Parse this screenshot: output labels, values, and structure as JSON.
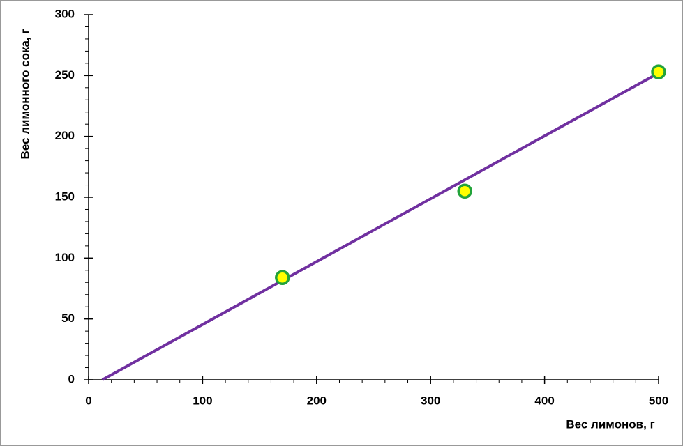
{
  "chart_data": {
    "type": "scatter",
    "x_label": "Вес лимонов, г",
    "y_label": "Вес лимонного сока, г",
    "series": [
      {
        "type": "scatter",
        "x": [
          170,
          330,
          500
        ],
        "values": [
          84,
          155,
          253
        ],
        "color": "#ffff00",
        "edge_color": "#22a33a"
      },
      {
        "type": "line",
        "x": [
          12,
          500
        ],
        "values": [
          0,
          252
        ],
        "color": "#7030a0"
      }
    ],
    "xlim": [
      0,
      500
    ],
    "xticks": [
      0,
      100,
      200,
      300,
      400,
      500
    ],
    "ylim": [
      0,
      300
    ],
    "yticks": [
      0,
      50,
      100,
      150,
      200,
      250,
      300
    ],
    "grid": false
  }
}
